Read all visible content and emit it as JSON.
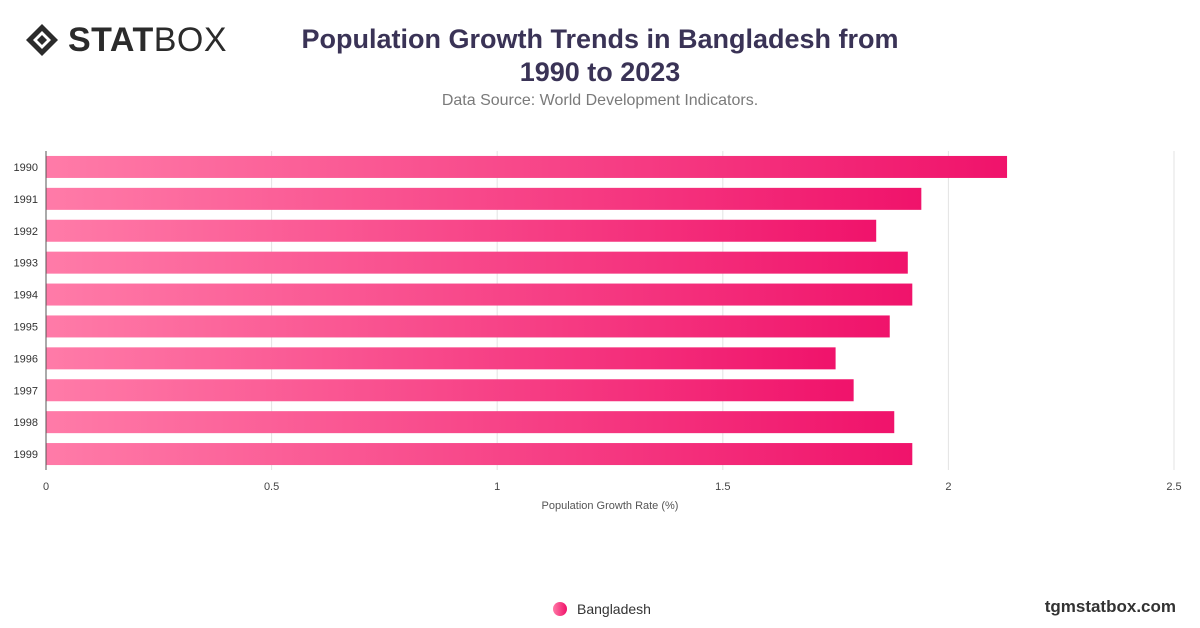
{
  "brand": {
    "logo_bold": "STAT",
    "logo_light": "BOX",
    "watermark": "tgmstatbox.com"
  },
  "header": {
    "title": "Population Growth Trends in Bangladesh from 1990 to 2023",
    "subtitle": "Data Source: World Development Indicators."
  },
  "colors": {
    "bar_start": "#ff7ba8",
    "bar_end": "#f0136b",
    "title": "#3a3356",
    "grid": "#e3e3e3"
  },
  "chart_data": {
    "type": "bar",
    "orientation": "horizontal",
    "categories": [
      "1990",
      "1991",
      "1992",
      "1993",
      "1994",
      "1995",
      "1996",
      "1997",
      "1998",
      "1999"
    ],
    "series": [
      {
        "name": "Bangladesh",
        "values": [
          2.13,
          1.94,
          1.84,
          1.91,
          1.92,
          1.87,
          1.75,
          1.79,
          1.88,
          1.92
        ]
      }
    ],
    "xlabel": "Population Growth Rate (%)",
    "ylabel": "",
    "xlim": [
      0,
      2.5
    ],
    "xticks": [
      "0",
      "0.5",
      "1",
      "1.5",
      "2",
      "2.5"
    ],
    "grid": true,
    "legend": "bottom-center"
  }
}
